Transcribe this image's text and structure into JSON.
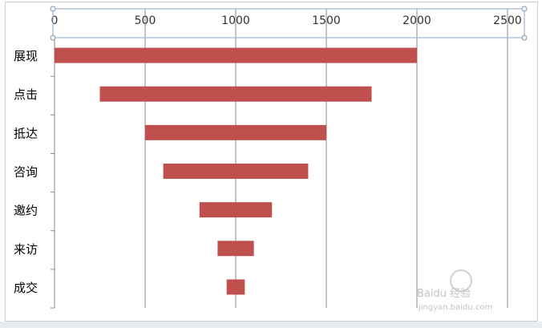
{
  "chart_data": {
    "type": "bar",
    "orientation": "horizontal",
    "style": "funnel",
    "categories": [
      "展现",
      "点击",
      "抵达",
      "咨询",
      "邀约",
      "来访",
      "成交"
    ],
    "series": [
      {
        "starts": [
          0,
          250,
          500,
          600,
          800,
          900,
          950
        ],
        "ends": [
          2000,
          1750,
          1500,
          1400,
          1200,
          1100,
          1050
        ]
      }
    ],
    "xlim": [
      0,
      2500
    ],
    "x_ticks": [
      "0",
      "500",
      "1000",
      "1500",
      "2000",
      "2500"
    ],
    "x_axis_position": "top",
    "gridlines": true,
    "legend": "none",
    "bar_color": "#c0504d"
  },
  "watermark": {
    "text_primary": "Baidu 经验",
    "text_secondary": "jingyan.baidu.com"
  }
}
